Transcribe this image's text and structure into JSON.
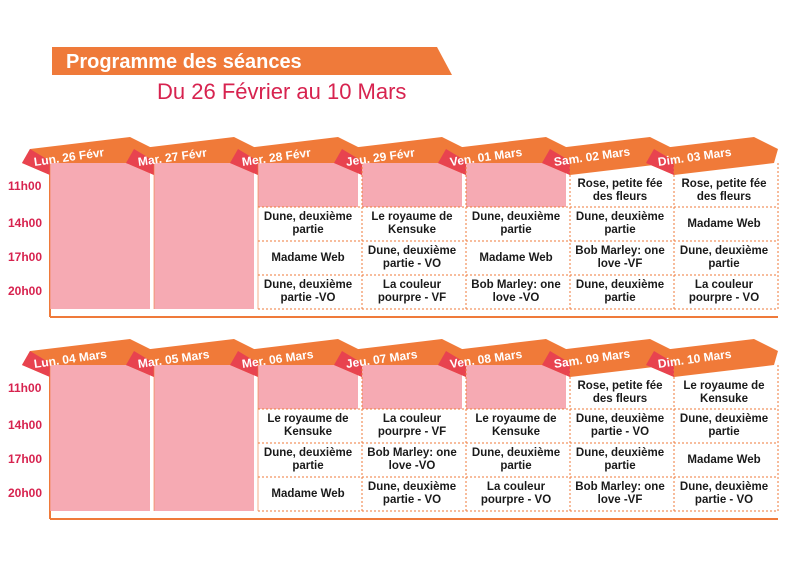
{
  "header": {
    "title": "Programme des séances",
    "subtitle": "Du 26 Février au 10 Mars"
  },
  "colors": {
    "accent": "#ef7a3a",
    "accent_dark": "#e8434f",
    "pink_fill": "#f6aab3",
    "title_red": "#d7234f"
  },
  "hours": [
    "11h00",
    "14h00",
    "17h00",
    "20h00"
  ],
  "weeks": [
    {
      "days": [
        "Lun. 26 Févr",
        "Mar. 27 Févr",
        "Mer. 28 Févr",
        "Jeu. 29 Févr",
        "Ven. 01 Mars",
        "Sam. 02 Mars",
        "Dim. 03 Mars"
      ],
      "rows": [
        [
          "",
          "",
          "",
          "",
          "",
          "Rose, petite fée des fleurs",
          "Rose, petite fée des fleurs"
        ],
        [
          "",
          "",
          "Dune, deuxième partie",
          "Le royaume de Kensuke",
          "Dune, deuxième partie",
          "Dune, deuxième partie",
          "Madame Web"
        ],
        [
          "",
          "",
          "Madame Web",
          "Dune, deuxième partie - VO",
          "Madame Web",
          "Bob Marley: one love -VF",
          "Dune, deuxième partie"
        ],
        [
          "",
          "",
          "Dune, deuxième partie -VO",
          "La couleur pourpre - VF",
          "Bob Marley: one love -VO",
          "Dune, deuxième partie",
          "La couleur pourpre - VO"
        ]
      ]
    },
    {
      "days": [
        "Lun. 04 Mars",
        "Mar. 05 Mars",
        "Mer. 06 Mars",
        "Jeu. 07 Mars",
        "Ven. 08 Mars",
        "Sam. 09 Mars",
        "Dim. 10 Mars"
      ],
      "rows": [
        [
          "",
          "",
          "",
          "",
          "",
          "Rose, petite fée des fleurs",
          "Le royaume de Kensuke"
        ],
        [
          "",
          "",
          "Le royaume de Kensuke",
          "La couleur pourpre - VF",
          "Le royaume de Kensuke",
          "Dune, deuxième partie - VO",
          "Dune, deuxième partie"
        ],
        [
          "",
          "",
          "Dune, deuxième partie",
          "Bob Marley: one love -VO",
          "Dune, deuxième partie",
          "Dune, deuxième partie",
          "Madame Web"
        ],
        [
          "",
          "",
          "Madame Web",
          "Dune, deuxième partie - VO",
          "La couleur pourpre - VO",
          "Bob Marley: one love -VF",
          "Dune, deuxième partie - VO"
        ]
      ]
    }
  ]
}
